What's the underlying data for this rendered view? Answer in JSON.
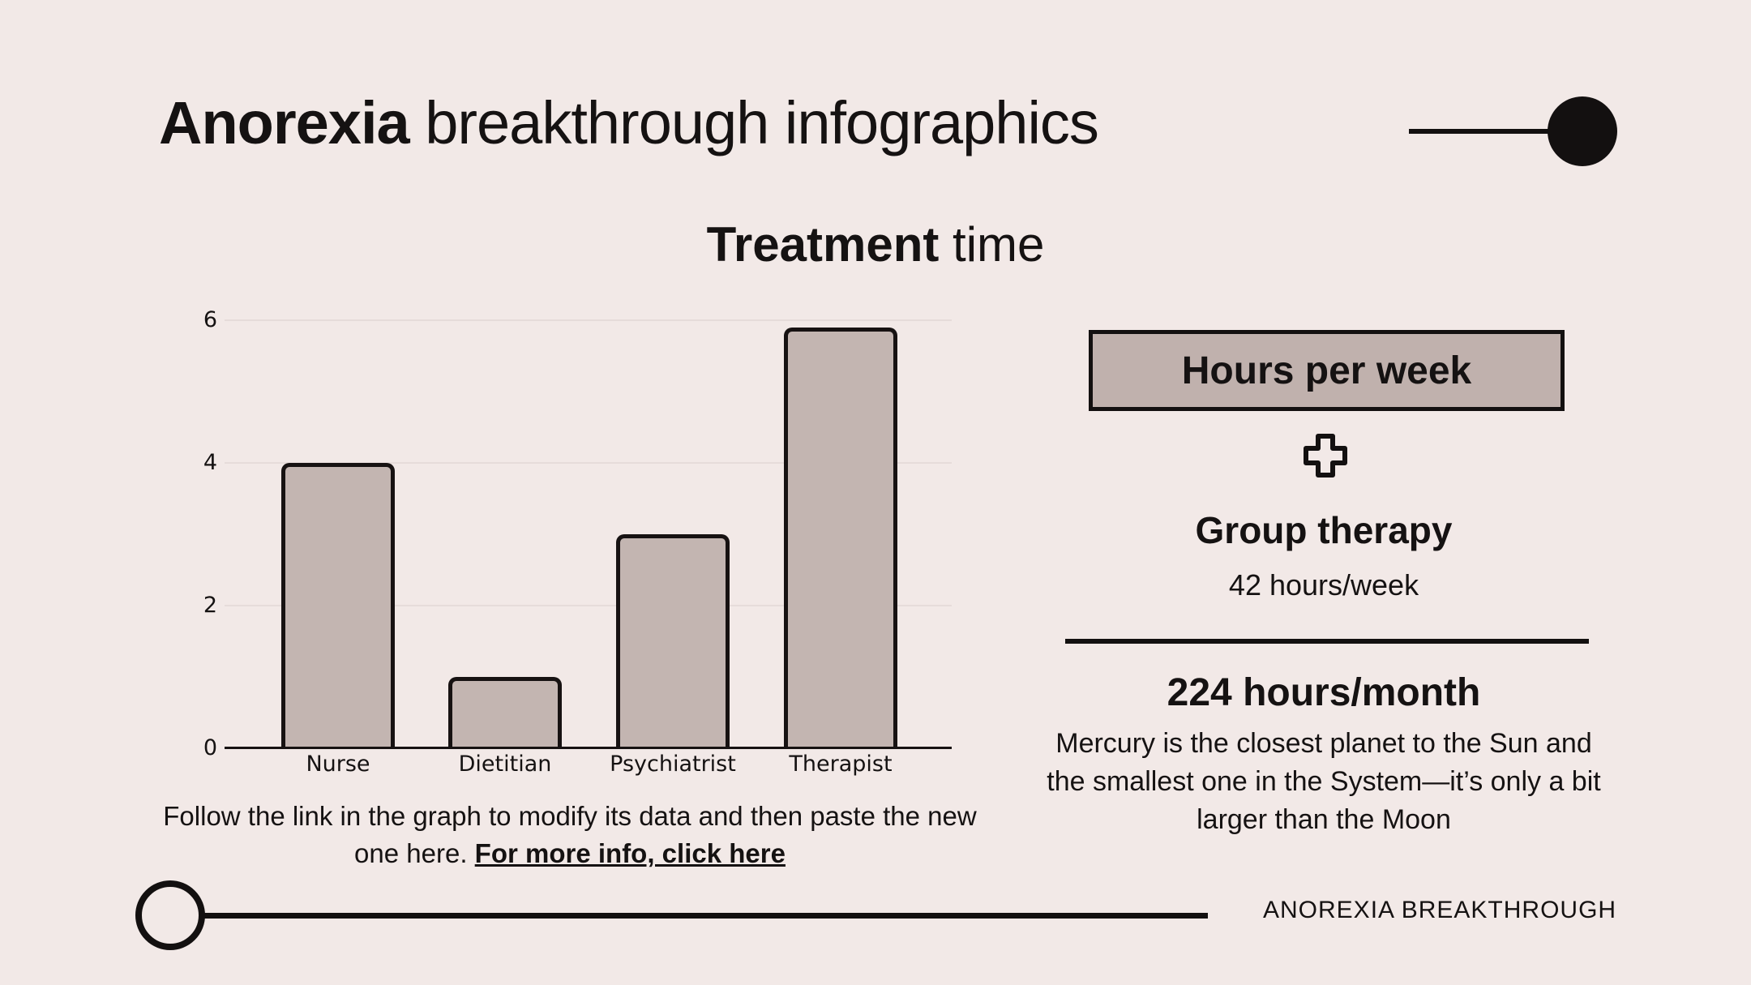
{
  "colors": {
    "background": "#f2e9e7",
    "bar_fill": "#c3b5b1",
    "badge_fill": "#c0b1ad",
    "ink": "#131010",
    "gridline": "#e6dcda"
  },
  "header": {
    "title_bold": "Anorexia",
    "title_rest": " breakthrough infographics"
  },
  "chart": {
    "title_bold": "Treatment",
    "title_rest": " time"
  },
  "chart_data": {
    "type": "bar",
    "title": "Treatment time",
    "categories": [
      "Nurse",
      "Dietitian",
      "Psychiatrist",
      "Therapist"
    ],
    "values": [
      4,
      1,
      3,
      5.9
    ],
    "xlabel": "",
    "ylabel": "",
    "ylim": [
      0,
      6
    ],
    "yticks": [
      0,
      2,
      4,
      6
    ],
    "gridline_values": [
      2,
      4,
      6
    ],
    "grid": "on",
    "legend": "none"
  },
  "note": {
    "text": "Follow the link in the graph to modify its data and then paste the new one here. ",
    "link_label": "For more info, click here"
  },
  "panel": {
    "badge_label": "Hours per week",
    "group_title": "Group therapy",
    "group_subtitle": "42 hours/week",
    "total": "224 hours/month",
    "description": "Mercury is the closest planet to the Sun and the smallest one in the System—it’s only a bit larger than the Moon"
  },
  "footer": {
    "brand": "ANOREXIA BREAKTHROUGH"
  },
  "icons": {
    "plus": "plus-icon",
    "title_dot": "filled-circle-icon",
    "footer_ring": "ring-circle-icon"
  }
}
